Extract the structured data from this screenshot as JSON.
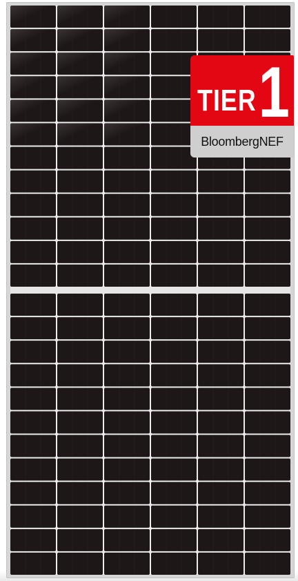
{
  "image": {
    "subject": "solar-panel",
    "cell_color": "#1d1718",
    "frame_color": "#d6d6d6",
    "cell_columns": 6,
    "rows_per_half": 12
  },
  "badge": {
    "tier_text": "TIER",
    "tier_number": "1",
    "brand_text": "BloombergNEF",
    "red_color": "#e30613",
    "grey_color": "#cfcfcf"
  }
}
